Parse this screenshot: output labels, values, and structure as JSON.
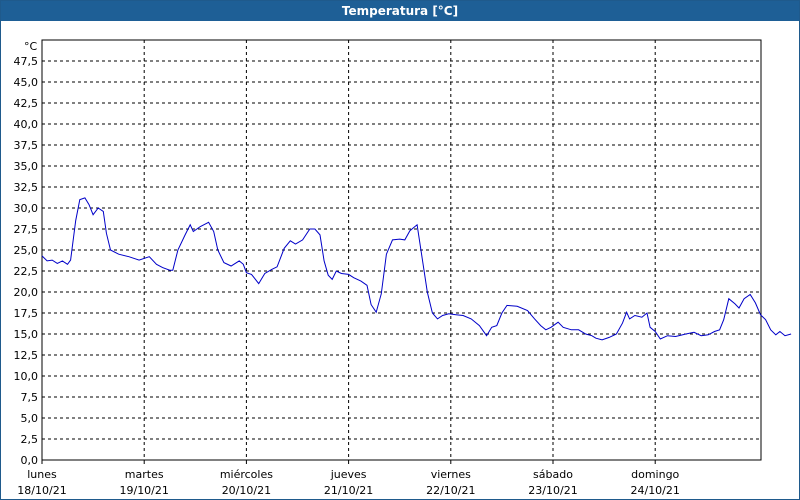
{
  "window": {
    "title": "Temperatura [°C]"
  },
  "chart_data": {
    "type": "line",
    "unit_label": "°C",
    "ylim": [
      0,
      50
    ],
    "y_ticks": [
      "0,0",
      "2,5",
      "5,0",
      "7,5",
      "10,0",
      "12,5",
      "15,0",
      "17,5",
      "20,0",
      "22,5",
      "25,0",
      "27,5",
      "30,0",
      "32,5",
      "35,0",
      "37,5",
      "40,0",
      "42,5",
      "45,0",
      "47,5"
    ],
    "xlim": [
      0,
      7
    ],
    "x_labels": [
      {
        "day": "lunes",
        "date": "18/10/21",
        "x": 0
      },
      {
        "day": "martes",
        "date": "19/10/21",
        "x": 1
      },
      {
        "day": "miércoles",
        "date": "20/10/21",
        "x": 2
      },
      {
        "day": "jueves",
        "date": "21/10/21",
        "x": 3
      },
      {
        "day": "viernes",
        "date": "22/10/21",
        "x": 4
      },
      {
        "day": "sábado",
        "date": "23/10/21",
        "x": 5
      },
      {
        "day": "domingo",
        "date": "24/10/21",
        "x": 6
      }
    ],
    "grid": true,
    "series": [
      {
        "color": "#0000c8",
        "points": [
          [
            0.0,
            24.3
          ],
          [
            0.05,
            23.7
          ],
          [
            0.1,
            23.8
          ],
          [
            0.15,
            23.4
          ],
          [
            0.2,
            23.7
          ],
          [
            0.25,
            23.3
          ],
          [
            0.28,
            23.8
          ],
          [
            0.33,
            28.5
          ],
          [
            0.37,
            31.0
          ],
          [
            0.42,
            31.2
          ],
          [
            0.46,
            30.4
          ],
          [
            0.5,
            29.2
          ],
          [
            0.55,
            30.0
          ],
          [
            0.6,
            29.6
          ],
          [
            0.63,
            27.0
          ],
          [
            0.67,
            25.0
          ],
          [
            0.75,
            24.5
          ],
          [
            0.85,
            24.2
          ],
          [
            0.95,
            23.8
          ],
          [
            1.05,
            24.2
          ],
          [
            1.12,
            23.3
          ],
          [
            1.18,
            22.9
          ],
          [
            1.25,
            22.6
          ],
          [
            1.28,
            22.6
          ],
          [
            1.33,
            25.0
          ],
          [
            1.4,
            26.8
          ],
          [
            1.45,
            28.0
          ],
          [
            1.48,
            27.2
          ],
          [
            1.55,
            27.8
          ],
          [
            1.63,
            28.3
          ],
          [
            1.68,
            27.2
          ],
          [
            1.72,
            25.0
          ],
          [
            1.78,
            23.5
          ],
          [
            1.85,
            23.1
          ],
          [
            1.93,
            23.7
          ],
          [
            1.97,
            23.3
          ],
          [
            2.0,
            22.3
          ],
          [
            2.05,
            22.1
          ],
          [
            2.12,
            21.0
          ],
          [
            2.18,
            22.2
          ],
          [
            2.25,
            22.7
          ],
          [
            2.3,
            23.0
          ],
          [
            2.37,
            25.2
          ],
          [
            2.43,
            26.1
          ],
          [
            2.48,
            25.7
          ],
          [
            2.55,
            26.2
          ],
          [
            2.62,
            27.5
          ],
          [
            2.67,
            27.5
          ],
          [
            2.72,
            26.8
          ],
          [
            2.76,
            23.7
          ],
          [
            2.8,
            22.0
          ],
          [
            2.84,
            21.5
          ],
          [
            2.88,
            22.5
          ],
          [
            2.93,
            22.2
          ],
          [
            3.0,
            22.1
          ],
          [
            3.05,
            21.7
          ],
          [
            3.12,
            21.3
          ],
          [
            3.18,
            20.8
          ],
          [
            3.22,
            18.5
          ],
          [
            3.27,
            17.6
          ],
          [
            3.32,
            19.8
          ],
          [
            3.37,
            24.5
          ],
          [
            3.43,
            26.2
          ],
          [
            3.5,
            26.3
          ],
          [
            3.55,
            26.2
          ],
          [
            3.6,
            27.3
          ],
          [
            3.67,
            28.0
          ],
          [
            3.72,
            24.0
          ],
          [
            3.77,
            20.0
          ],
          [
            3.82,
            17.5
          ],
          [
            3.87,
            16.8
          ],
          [
            3.92,
            17.2
          ],
          [
            3.98,
            17.4
          ],
          [
            4.05,
            17.3
          ],
          [
            4.12,
            17.2
          ],
          [
            4.2,
            16.8
          ],
          [
            4.28,
            16.0
          ],
          [
            4.35,
            14.8
          ],
          [
            4.4,
            15.8
          ],
          [
            4.45,
            16.0
          ],
          [
            4.5,
            17.5
          ],
          [
            4.55,
            18.4
          ],
          [
            4.65,
            18.3
          ],
          [
            4.75,
            17.8
          ],
          [
            4.82,
            16.8
          ],
          [
            4.88,
            16.0
          ],
          [
            4.93,
            15.5
          ],
          [
            4.98,
            15.8
          ],
          [
            5.05,
            16.4
          ],
          [
            5.1,
            15.8
          ],
          [
            5.18,
            15.5
          ],
          [
            5.25,
            15.5
          ],
          [
            5.32,
            15.0
          ],
          [
            5.38,
            14.8
          ],
          [
            5.42,
            14.5
          ],
          [
            5.48,
            14.3
          ],
          [
            5.55,
            14.6
          ],
          [
            5.62,
            15.0
          ],
          [
            5.68,
            16.3
          ],
          [
            5.72,
            17.6
          ],
          [
            5.75,
            16.8
          ],
          [
            5.8,
            17.2
          ],
          [
            5.87,
            17.0
          ],
          [
            5.92,
            17.5
          ],
          [
            5.95,
            15.8
          ],
          [
            6.0,
            15.3
          ],
          [
            6.05,
            14.4
          ],
          [
            6.12,
            14.8
          ],
          [
            6.2,
            14.7
          ],
          [
            6.3,
            15.0
          ],
          [
            6.38,
            15.2
          ],
          [
            6.45,
            14.8
          ],
          [
            6.52,
            14.9
          ],
          [
            6.58,
            15.3
          ],
          [
            6.63,
            15.5
          ],
          [
            6.67,
            16.7
          ],
          [
            6.72,
            19.2
          ],
          [
            6.78,
            18.6
          ],
          [
            6.82,
            18.1
          ],
          [
            6.87,
            19.2
          ],
          [
            6.93,
            19.7
          ],
          [
            6.98,
            18.7
          ],
          [
            7.03,
            17.3
          ],
          [
            7.08,
            16.7
          ],
          [
            7.13,
            15.5
          ],
          [
            7.18,
            14.9
          ],
          [
            7.22,
            15.3
          ],
          [
            7.27,
            14.8
          ],
          [
            7.33,
            15.0
          ]
        ]
      }
    ]
  }
}
